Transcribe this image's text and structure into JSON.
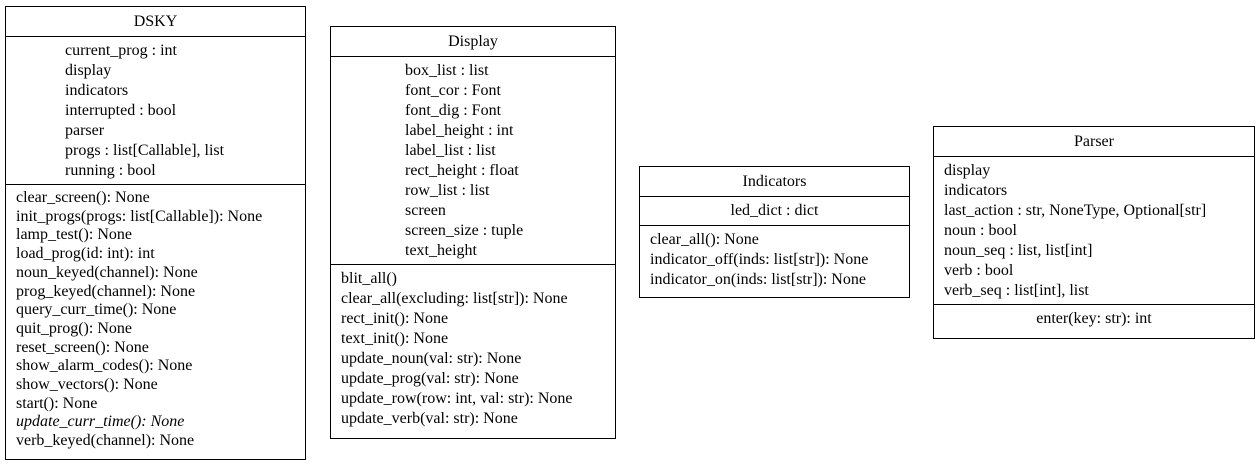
{
  "classes": {
    "dsky": {
      "name": "DSKY",
      "attributes": [
        "current_prog : int",
        "display",
        "indicators",
        "interrupted : bool",
        "parser",
        "progs : list[Callable], list",
        "running : bool"
      ],
      "methods": [
        "clear_screen(): None",
        "init_progs(progs: list[Callable]): None",
        "lamp_test(): None",
        "load_prog(id: int): int",
        "noun_keyed(channel): None",
        "prog_keyed(channel): None",
        "query_curr_time(): None",
        "quit_prog(): None",
        "reset_screen(): None",
        "show_alarm_codes(): None",
        "show_vectors(): None",
        "start(): None",
        "update_curr_time(): None",
        "verb_keyed(channel): None"
      ]
    },
    "display": {
      "name": "Display",
      "attributes": [
        "box_list : list",
        "font_cor : Font",
        "font_dig : Font",
        "label_height : int",
        "label_list : list",
        "rect_height : float",
        "row_list : list",
        "screen",
        "screen_size : tuple",
        "text_height"
      ],
      "methods": [
        "blit_all()",
        "clear_all(excluding: list[str]): None",
        "rect_init(): None",
        "text_init(): None",
        "update_noun(val: str): None",
        "update_prog(val: str): None",
        "update_row(row: int, val: str): None",
        "update_verb(val: str): None"
      ]
    },
    "indicators": {
      "name": "Indicators",
      "attributes": [
        "led_dict : dict"
      ],
      "methods": [
        "clear_all(): None",
        "indicator_off(inds: list[str]): None",
        "indicator_on(inds: list[str]): None"
      ]
    },
    "parser": {
      "name": "Parser",
      "attributes": [
        "display",
        "indicators",
        "last_action : str, NoneType, Optional[str]",
        "noun : bool",
        "noun_seq : list, list[int]",
        "verb : bool",
        "verb_seq : list[int], list"
      ],
      "methods": [
        "enter(key: str): int"
      ]
    }
  }
}
